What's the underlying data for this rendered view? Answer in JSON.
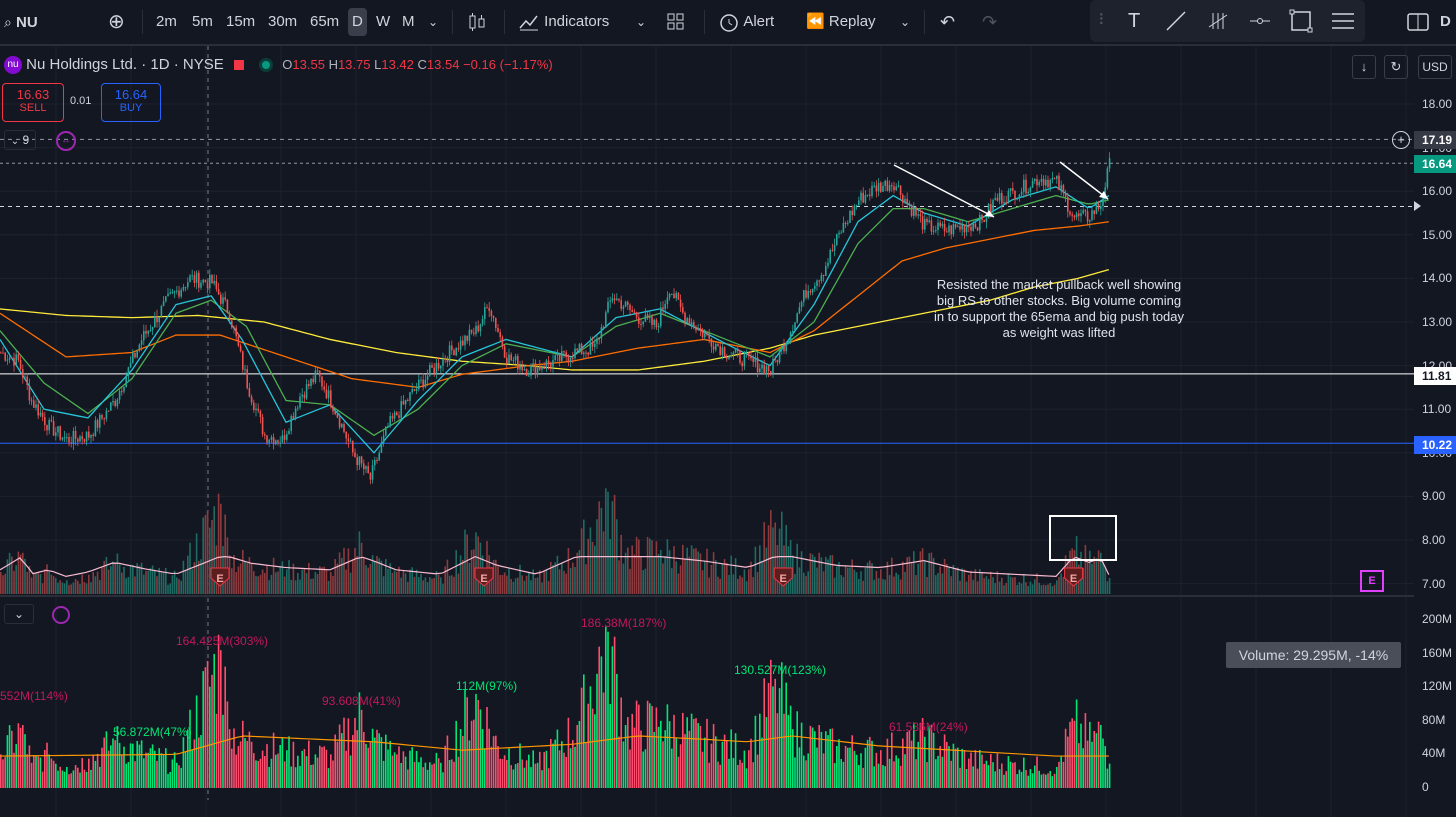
{
  "toolbar": {
    "symbol": "NU",
    "intervals": [
      "2m",
      "5m",
      "15m",
      "30m",
      "65m",
      "D",
      "W",
      "M"
    ],
    "active_interval": "D",
    "indicators_label": "Indicators",
    "alert_label": "Alert",
    "replay_label": "Replay",
    "cut_label": "D"
  },
  "legend": {
    "title": "Nu Holdings Ltd. · 1D · NYSE",
    "open_label": "O",
    "open": "13.55",
    "high_label": "H",
    "high": "13.75",
    "low_label": "L",
    "low": "13.42",
    "close_label": "C",
    "close": "13.54",
    "change": "−0.16 (−1.17%)"
  },
  "trade": {
    "sell_price": "16.63",
    "sell_label": "SELL",
    "spread": "0.01",
    "buy_price": "16.64",
    "buy_label": "BUY"
  },
  "collapse_count": "9",
  "currency": "USD",
  "price_axis": [
    "18.00",
    "17.00",
    "16.00",
    "15.00",
    "14.00",
    "13.00",
    "12.00",
    "11.00",
    "10.00",
    "9.00",
    "8.00",
    "7.00"
  ],
  "price_tags": {
    "crosshair": "17.19",
    "last": "16.64",
    "level_white": "11.81",
    "level_blue": "10.22"
  },
  "volume_axis": [
    "200M",
    "160M",
    "120M",
    "80M",
    "40M",
    "0"
  ],
  "annotation": "Resisted the market pullback well showing big RS to other stocks. Big volume coming in to support the 65ema and big push today as weight was lifted",
  "volume_labels": [
    {
      "text": "552M(114%)",
      "color": "#c2185b"
    },
    {
      "text": "56.872M(47%)",
      "color": "#00e676"
    },
    {
      "text": "164.425M(303%)",
      "color": "#c2185b"
    },
    {
      "text": "93.608M(41%)",
      "color": "#c2185b"
    },
    {
      "text": "112M(97%)",
      "color": "#00e676"
    },
    {
      "text": "186.38M(187%)",
      "color": "#c2185b"
    },
    {
      "text": "130.527M(123%)",
      "color": "#00e676"
    },
    {
      "text": "61.536M(24%)",
      "color": "#c2185b"
    }
  ],
  "volume_tooltip": "Volume: 29.295M, -14%",
  "earnings_marker": "E",
  "colors": {
    "background": "#131722",
    "up": "#26a69a",
    "down": "#ef5350",
    "vol_up": "#00e676",
    "vol_down": "#ff4d6d",
    "ema_fast": "#26c6da",
    "ema_mid": "#4caf50",
    "ema_65": "#ff6d00",
    "sma_long": "#ffeb3b",
    "level_blue": "#2962ff",
    "last_price": "#089981"
  },
  "chart_data": {
    "type": "candlestick",
    "symbol": "NU",
    "interval": "1D",
    "ylim": [
      7,
      18.5
    ],
    "anchors": [
      [
        0,
        12.3
      ],
      [
        8,
        12.1
      ],
      [
        14,
        11.2
      ],
      [
        22,
        10.6
      ],
      [
        30,
        10.3
      ],
      [
        40,
        10.4
      ],
      [
        52,
        11.2
      ],
      [
        64,
        12.6
      ],
      [
        76,
        13.5
      ],
      [
        86,
        14.0
      ],
      [
        96,
        13.9
      ],
      [
        104,
        13.2
      ],
      [
        112,
        11.6
      ],
      [
        120,
        10.4
      ],
      [
        128,
        10.3
      ],
      [
        136,
        11.3
      ],
      [
        144,
        11.8
      ],
      [
        152,
        11.0
      ],
      [
        160,
        10.0
      ],
      [
        168,
        9.4
      ],
      [
        176,
        10.6
      ],
      [
        186,
        11.3
      ],
      [
        196,
        11.9
      ],
      [
        206,
        12.4
      ],
      [
        216,
        12.8
      ],
      [
        222,
        13.4
      ],
      [
        230,
        12.2
      ],
      [
        240,
        11.9
      ],
      [
        252,
        12.1
      ],
      [
        260,
        12.3
      ],
      [
        270,
        12.4
      ],
      [
        278,
        13.6
      ],
      [
        290,
        13.1
      ],
      [
        298,
        12.9
      ],
      [
        304,
        13.8
      ],
      [
        310,
        13.2
      ],
      [
        320,
        12.7
      ],
      [
        330,
        12.3
      ],
      [
        340,
        12.1
      ],
      [
        350,
        11.9
      ],
      [
        358,
        12.7
      ],
      [
        366,
        13.7
      ],
      [
        374,
        14.2
      ],
      [
        382,
        15.1
      ],
      [
        390,
        15.8
      ],
      [
        398,
        16.1
      ],
      [
        406,
        16.2
      ],
      [
        414,
        15.6
      ],
      [
        420,
        15.2
      ],
      [
        430,
        15.1
      ],
      [
        438,
        15.2
      ],
      [
        446,
        15.3
      ],
      [
        452,
        15.8
      ],
      [
        462,
        16.0
      ],
      [
        472,
        16.3
      ],
      [
        480,
        16.2
      ],
      [
        488,
        15.4
      ],
      [
        494,
        15.4
      ],
      [
        500,
        15.7
      ],
      [
        504,
        16.6
      ]
    ],
    "ema_fast_anchors": [
      [
        0,
        12.6
      ],
      [
        20,
        11.0
      ],
      [
        40,
        10.8
      ],
      [
        60,
        11.9
      ],
      [
        80,
        13.4
      ],
      [
        96,
        13.6
      ],
      [
        110,
        12.6
      ],
      [
        130,
        10.7
      ],
      [
        150,
        11.1
      ],
      [
        170,
        10.0
      ],
      [
        190,
        11.2
      ],
      [
        210,
        12.2
      ],
      [
        230,
        12.6
      ],
      [
        260,
        12.2
      ],
      [
        280,
        13.1
      ],
      [
        300,
        13.3
      ],
      [
        330,
        12.5
      ],
      [
        350,
        12.0
      ],
      [
        370,
        13.4
      ],
      [
        390,
        15.3
      ],
      [
        406,
        15.9
      ],
      [
        420,
        15.5
      ],
      [
        440,
        15.2
      ],
      [
        460,
        15.8
      ],
      [
        480,
        16.1
      ],
      [
        495,
        15.6
      ],
      [
        504,
        15.9
      ]
    ],
    "ema_mid_anchors": [
      [
        0,
        12.8
      ],
      [
        20,
        11.6
      ],
      [
        40,
        10.9
      ],
      [
        60,
        11.7
      ],
      [
        80,
        13.2
      ],
      [
        96,
        13.5
      ],
      [
        112,
        12.9
      ],
      [
        130,
        11.2
      ],
      [
        150,
        11.1
      ],
      [
        170,
        10.4
      ],
      [
        190,
        11.0
      ],
      [
        210,
        12.0
      ],
      [
        230,
        12.5
      ],
      [
        260,
        12.2
      ],
      [
        280,
        12.9
      ],
      [
        300,
        13.2
      ],
      [
        330,
        12.6
      ],
      [
        350,
        12.2
      ],
      [
        370,
        13.0
      ],
      [
        390,
        14.8
      ],
      [
        406,
        15.6
      ],
      [
        420,
        15.6
      ],
      [
        440,
        15.3
      ],
      [
        460,
        15.6
      ],
      [
        480,
        15.9
      ],
      [
        495,
        15.7
      ],
      [
        504,
        15.8
      ]
    ],
    "ema65_anchors": [
      [
        0,
        13.2
      ],
      [
        30,
        12.2
      ],
      [
        60,
        12.3
      ],
      [
        80,
        12.7
      ],
      [
        100,
        12.7
      ],
      [
        130,
        12.2
      ],
      [
        160,
        11.7
      ],
      [
        190,
        11.5
      ],
      [
        210,
        11.8
      ],
      [
        240,
        12.0
      ],
      [
        260,
        12.1
      ],
      [
        290,
        12.4
      ],
      [
        320,
        12.6
      ],
      [
        350,
        12.3
      ],
      [
        370,
        12.8
      ],
      [
        390,
        13.6
      ],
      [
        410,
        14.4
      ],
      [
        430,
        14.7
      ],
      [
        450,
        14.9
      ],
      [
        470,
        15.1
      ],
      [
        490,
        15.2
      ],
      [
        504,
        15.3
      ]
    ],
    "sma_long_anchors": [
      [
        0,
        13.3
      ],
      [
        30,
        13.15
      ],
      [
        60,
        13.1
      ],
      [
        90,
        13.15
      ],
      [
        120,
        13.0
      ],
      [
        150,
        12.6
      ],
      [
        180,
        12.3
      ],
      [
        210,
        12.1
      ],
      [
        240,
        12.0
      ],
      [
        260,
        11.9
      ],
      [
        290,
        11.9
      ],
      [
        320,
        12.1
      ],
      [
        350,
        12.4
      ],
      [
        370,
        12.7
      ],
      [
        390,
        12.9
      ],
      [
        410,
        13.1
      ],
      [
        430,
        13.3
      ],
      [
        450,
        13.5
      ],
      [
        470,
        13.8
      ],
      [
        490,
        14.0
      ],
      [
        504,
        14.2
      ]
    ],
    "volume_anchors_m": [
      [
        0,
        40
      ],
      [
        10,
        75
      ],
      [
        14,
        30
      ],
      [
        22,
        40
      ],
      [
        30,
        25
      ],
      [
        40,
        35
      ],
      [
        52,
        57
      ],
      [
        66,
        42
      ],
      [
        80,
        30
      ],
      [
        100,
        164
      ],
      [
        104,
        70
      ],
      [
        114,
        55
      ],
      [
        130,
        45
      ],
      [
        150,
        40
      ],
      [
        164,
        93
      ],
      [
        170,
        60
      ],
      [
        180,
        40
      ],
      [
        200,
        30
      ],
      [
        216,
        112
      ],
      [
        226,
        50
      ],
      [
        244,
        30
      ],
      [
        262,
        75
      ],
      [
        276,
        186
      ],
      [
        284,
        75
      ],
      [
        300,
        80
      ],
      [
        320,
        60
      ],
      [
        340,
        45
      ],
      [
        352,
        130
      ],
      [
        360,
        70
      ],
      [
        380,
        50
      ],
      [
        400,
        45
      ],
      [
        420,
        61
      ],
      [
        440,
        35
      ],
      [
        460,
        30
      ],
      [
        480,
        25
      ],
      [
        488,
        80
      ],
      [
        496,
        55
      ],
      [
        500,
        75
      ],
      [
        504,
        29
      ]
    ],
    "earnings_x": [
      100,
      220,
      356,
      488
    ],
    "horizontal_levels": [
      11.81,
      10.22
    ],
    "dashed_levels": [
      17.19,
      16.64,
      15.65
    ]
  }
}
